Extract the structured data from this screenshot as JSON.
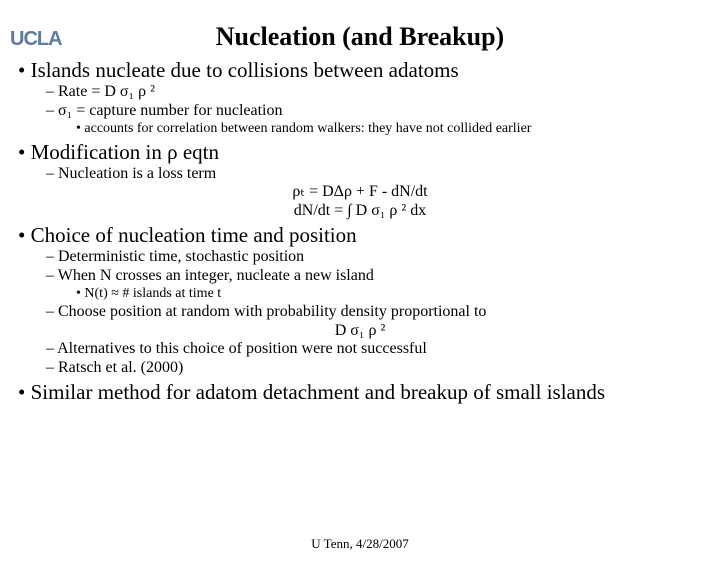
{
  "logo": "UCLA",
  "title": "Nucleation (and Breakup)",
  "footer": "U Tenn, 4/28/2007",
  "b1": {
    "text": "Islands nucleate due to collisions between adatoms",
    "s1": "Rate = D σ₁ ρ ²",
    "s2": "σ₁ = capture number for nucleation",
    "s2a": "accounts for correlation between random walkers: they have not collided earlier"
  },
  "b2": {
    "text": "Modification in ρ eqtn",
    "s1": "Nucleation is a loss term",
    "eq1": "ρₜ = DΔρ + F - dN/dt",
    "eq2": "dN/dt = ∫ D σ₁ ρ ² dx"
  },
  "b3": {
    "text": "Choice of nucleation time and position",
    "s1": "Deterministic time, stochastic position",
    "s2": "When N crosses an integer, nucleate a new island",
    "s2a": "N(t) ≈ # islands at time t",
    "s3": "Choose position at random with probability density proportional to",
    "eq": "D σ₁ ρ ²",
    "s4": "Alternatives to this choice of position were not successful",
    "s5": "Ratsch et al. (2000)"
  },
  "b4": {
    "text": "Similar method for adatom detachment and breakup of small islands"
  },
  "colors": {
    "text": "#000000",
    "background": "#ffffff",
    "logo": "#5b7ba5"
  },
  "fonts": {
    "body": "Times New Roman",
    "logo": "Arial",
    "title_size": 26,
    "l1_size": 21,
    "l2_size": 16,
    "l3_size": 14
  }
}
